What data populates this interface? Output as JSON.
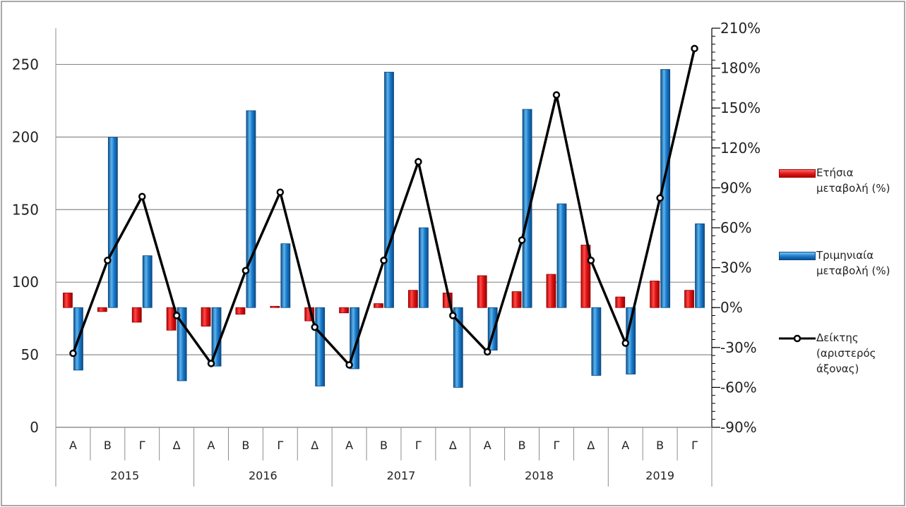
{
  "chart_data": {
    "type": "bar",
    "x_categories": [
      "Α",
      "Β",
      "Γ",
      "Δ",
      "Α",
      "Β",
      "Γ",
      "Δ",
      "Α",
      "Β",
      "Γ",
      "Δ",
      "Α",
      "Β",
      "Γ",
      "Δ",
      "Α",
      "Β",
      "Γ"
    ],
    "x_groups": [
      {
        "label": "2015",
        "count": 4
      },
      {
        "label": "2016",
        "count": 4
      },
      {
        "label": "2017",
        "count": 4
      },
      {
        "label": "2018",
        "count": 4
      },
      {
        "label": "2019",
        "count": 3
      }
    ],
    "y_left": {
      "min": 0,
      "max": 275,
      "ticks": [
        0,
        50,
        100,
        150,
        200,
        250
      ],
      "tick_labels": [
        "0",
        "50",
        "100",
        "150",
        "200",
        "250"
      ]
    },
    "y_right": {
      "min": -90,
      "max": 210,
      "ticks": [
        -90,
        -60,
        -30,
        0,
        30,
        60,
        90,
        120,
        150,
        180,
        210
      ],
      "tick_labels": [
        "-90%",
        "-60%",
        "-30%",
        "0%",
        "30%",
        "60%",
        "90%",
        "120%",
        "150%",
        "180%",
        "210%"
      ]
    },
    "grid": true,
    "series": [
      {
        "name": "Ετήσια μεταβολή (%)",
        "type": "bar",
        "axis": "right",
        "color": "#e21b1b",
        "values": [
          11,
          -3,
          -11,
          -17,
          -14,
          -5,
          1,
          -10,
          -4,
          3,
          13,
          11,
          24,
          12,
          25,
          47,
          8,
          20,
          13
        ]
      },
      {
        "name": "Τριμηνιαία μεταβολή (%)",
        "type": "bar",
        "axis": "right",
        "color": "#1f7fcf",
        "values": [
          -47,
          128,
          39,
          -55,
          -44,
          148,
          48,
          -59,
          -46,
          177,
          60,
          -60,
          -32,
          149,
          78,
          -51,
          -50,
          179,
          63
        ]
      },
      {
        "name": "Δείκτης (αριστερός άξονας)",
        "type": "line",
        "axis": "left",
        "color": "#000000",
        "values": [
          51,
          115,
          159,
          77,
          44,
          108,
          162,
          69,
          43,
          115,
          183,
          77,
          52,
          129,
          229,
          115,
          58,
          158,
          261
        ]
      }
    ]
  },
  "legend": {
    "bar_annual": "Ετήσια μεταβολή (%)",
    "bar_quarterly": "Τριμηνιαία μεταβολή (%)",
    "line_index": "Δείκτης (αριστερός άξονας)"
  }
}
